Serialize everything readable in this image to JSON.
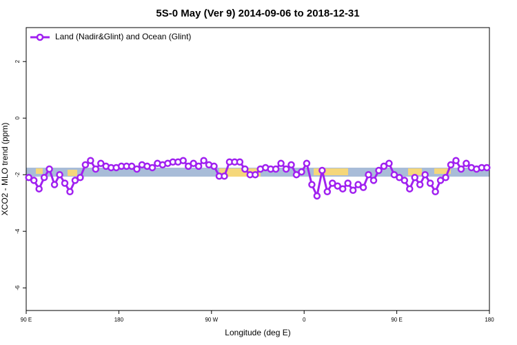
{
  "chart_data": {
    "type": "line",
    "title": "5S-0 May (Ver 9)   2014-09-06 to 2018-12-31",
    "xlabel": "Longitude (deg E)",
    "ylabel": "XCO2 - MLO trend (ppm)",
    "xlim": [
      90,
      540
    ],
    "ylim": [
      -6.8,
      3.2
    ],
    "xticks": [
      {
        "value": 90,
        "label": "90 E"
      },
      180,
      {
        "value": 270,
        "label": "90 W"
      },
      {
        "value": 360,
        "label": "0"
      },
      {
        "value": 450,
        "label": "90 E"
      },
      {
        "value": 540,
        "label": "180"
      }
    ],
    "yticks": [
      2,
      0,
      -2,
      -4,
      -6
    ],
    "legend": "upper left",
    "x": [
      92.5,
      97.5,
      102.5,
      107.5,
      112.5,
      117.5,
      122.5,
      127.5,
      132.5,
      137.5,
      142.5,
      147.5,
      152.5,
      157.5,
      162.5,
      167.5,
      172.5,
      177.5,
      182.5,
      187.5,
      192.5,
      197.5,
      202.5,
      207.5,
      212.5,
      217.5,
      222.5,
      227.5,
      232.5,
      237.5,
      242.5,
      247.5,
      252.5,
      257.5,
      262.5,
      267.5,
      272.5,
      277.5,
      282.5,
      287.5,
      292.5,
      297.5,
      302.5,
      307.5,
      312.5,
      317.5,
      322.5,
      327.5,
      332.5,
      337.5,
      342.5,
      347.5,
      352.5,
      357.5,
      362.5,
      367.5,
      372.5,
      377.5,
      382.5,
      387.5,
      392.5,
      397.5,
      402.5,
      407.5,
      412.5,
      417.5,
      422.5,
      427.5,
      432.5,
      437.5,
      442.5,
      447.5,
      452.5,
      457.5,
      462.5,
      467.5,
      472.5,
      477.5,
      482.5,
      487.5,
      492.5,
      497.5,
      502.5,
      507.5,
      512.5,
      517.5,
      522.5,
      527.5,
      532.5,
      537.5
    ],
    "series": [
      {
        "name": "Land (Nadir&Glint) and Ocean (Glint)",
        "color": "#a020f0",
        "values": [
          -2.1,
          -2.2,
          -2.5,
          -2.1,
          -1.8,
          -2.35,
          -2.0,
          -2.3,
          -2.6,
          -2.2,
          -2.1,
          -1.65,
          -1.5,
          -1.8,
          -1.6,
          -1.7,
          -1.75,
          -1.75,
          -1.7,
          -1.7,
          -1.7,
          -1.8,
          -1.65,
          -1.7,
          -1.75,
          -1.6,
          -1.65,
          -1.6,
          -1.55,
          -1.55,
          -1.5,
          -1.7,
          -1.6,
          -1.7,
          -1.5,
          -1.65,
          -1.7,
          -2.05,
          -2.05,
          -1.55,
          -1.55,
          -1.55,
          -1.8,
          -2.0,
          -2.0,
          -1.8,
          -1.75,
          -1.8,
          -1.8,
          -1.6,
          -1.8,
          -1.65,
          -2.0,
          -1.9,
          -1.6,
          -2.35,
          -2.75,
          -1.85,
          -2.6,
          -2.3,
          -2.4,
          -2.5,
          -2.3,
          -2.55,
          -2.35,
          -2.45,
          -2.0,
          -2.2,
          -1.85,
          -1.7,
          -1.6,
          -2.0,
          -2.1,
          -2.2,
          -2.5,
          -2.1,
          -2.35,
          -2.0,
          -2.3,
          -2.6,
          -2.2,
          -2.1,
          -1.65,
          -1.5,
          -1.8,
          -1.6,
          -1.75,
          -1.8,
          -1.75,
          -1.75
        ]
      }
    ]
  }
}
